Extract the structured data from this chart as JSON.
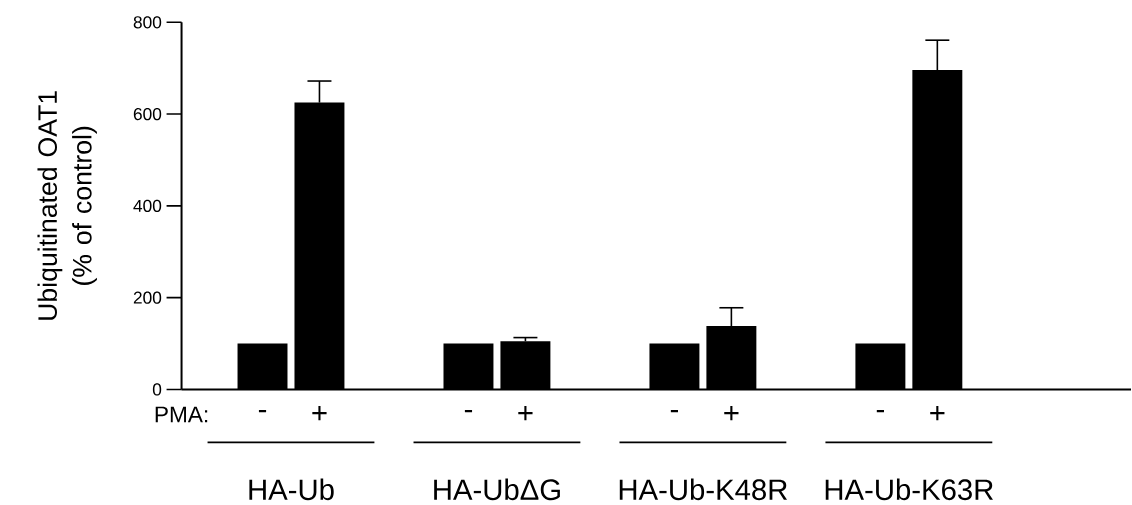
{
  "chart_data": {
    "type": "bar",
    "ylabel": "Ubiquitinated OAT1 (% of control)",
    "legend_title": "PMA:",
    "categories": [
      "HA-Ub",
      "HA-UbΔG",
      "HA-Ub-K48R",
      "HA-Ub-K63R"
    ],
    "series": [
      {
        "name": "-",
        "color": "#000000",
        "values": [
          100,
          100,
          100,
          100
        ]
      },
      {
        "name": "+",
        "color": "#000000",
        "values": [
          625,
          105,
          138,
          696
        ],
        "errors": [
          47,
          8,
          40,
          65
        ]
      }
    ],
    "ylim": [
      0,
      800
    ],
    "yticks": [
      0,
      200,
      400,
      600,
      800
    ],
    "grid": false
  }
}
